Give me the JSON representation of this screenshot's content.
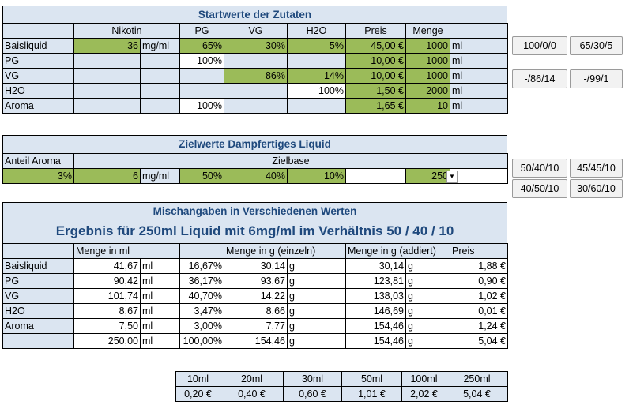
{
  "start": {
    "title": "Startwerte der Zutaten",
    "headers": [
      "Nikotin",
      "PG",
      "VG",
      "H2O",
      "Preis",
      "Menge"
    ],
    "rows": [
      {
        "label": "Baisliquid",
        "nik": "36",
        "nik_unit": "mg/ml",
        "pg": "65%",
        "vg": "30%",
        "h2o": "5%",
        "preis": "45,00 €",
        "menge": "1000",
        "unit": "ml"
      },
      {
        "label": "PG",
        "nik": "",
        "nik_unit": "",
        "pg": "100%",
        "vg": "",
        "h2o": "",
        "preis": "10,00 €",
        "menge": "1000",
        "unit": "ml"
      },
      {
        "label": "VG",
        "nik": "",
        "nik_unit": "",
        "pg": "",
        "vg": "86%",
        "h2o": "14%",
        "preis": "10,00 €",
        "menge": "1000",
        "unit": "ml"
      },
      {
        "label": "H2O",
        "nik": "",
        "nik_unit": "",
        "pg": "",
        "vg": "",
        "h2o": "100%",
        "preis": "1,50 €",
        "menge": "2000",
        "unit": "ml"
      },
      {
        "label": "Aroma",
        "nik": "",
        "nik_unit": "",
        "pg": "100%",
        "vg": "",
        "h2o": "",
        "preis": "1,65 €",
        "menge": "10",
        "unit": "ml"
      }
    ]
  },
  "preset_buttons": [
    "100/0/0",
    "65/30/5",
    "-/86/14",
    "-/99/1"
  ],
  "ziel": {
    "title": "Zielwerte Dampfertiges Liquid",
    "anteil_label": "Anteil Aroma",
    "zielbase_label": "Zielbase",
    "aroma": "3%",
    "nik": "6",
    "nik_unit": "mg/ml",
    "pg": "50%",
    "vg": "40%",
    "h2o": "10%",
    "menge": "250",
    "dropdown_icon": "▼"
  },
  "ratio_buttons": [
    "50/40/10",
    "45/45/10",
    "40/50/10",
    "30/60/10"
  ],
  "misch": {
    "title": "Mischangaben in Verschiedenen Werten",
    "result": "Ergebnis für 250ml Liquid mit 6mg/ml im Verhältnis 50 / 40 / 10",
    "headers": [
      "Menge in ml",
      "Menge in g (einzeln)",
      "Menge in g (addiert)",
      "Preis"
    ],
    "rows": [
      {
        "label": "Baisliquid",
        "ml": "41,67",
        "ml_u": "ml",
        "pct": "16,67%",
        "g": "30,14",
        "g_u": "g",
        "ga": "30,14",
        "ga_u": "g",
        "preis": "1,88 €"
      },
      {
        "label": "PG",
        "ml": "90,42",
        "ml_u": "ml",
        "pct": "36,17%",
        "g": "93,67",
        "g_u": "g",
        "ga": "123,81",
        "ga_u": "g",
        "preis": "0,90 €"
      },
      {
        "label": "VG",
        "ml": "101,74",
        "ml_u": "ml",
        "pct": "40,70%",
        "g": "14,22",
        "g_u": "g",
        "ga": "138,03",
        "ga_u": "g",
        "preis": "1,02 €"
      },
      {
        "label": "H2O",
        "ml": "8,67",
        "ml_u": "ml",
        "pct": "3,47%",
        "g": "8,66",
        "g_u": "g",
        "ga": "146,69",
        "ga_u": "g",
        "preis": "0,01 €"
      },
      {
        "label": "Aroma",
        "ml": "7,50",
        "ml_u": "ml",
        "pct": "3,00%",
        "g": "7,77",
        "g_u": "g",
        "ga": "154,46",
        "ga_u": "g",
        "preis": "1,24 €"
      },
      {
        "label": "",
        "ml": "250,00",
        "ml_u": "ml",
        "pct": "100,00%",
        "g": "154,46",
        "g_u": "g",
        "ga": "154,46",
        "ga_u": "g",
        "preis": "5,04 €"
      }
    ]
  },
  "price_table": {
    "sizes": [
      "10ml",
      "20ml",
      "30ml",
      "50ml",
      "100ml",
      "250ml"
    ],
    "prices": [
      "0,20 €",
      "0,40 €",
      "0,60 €",
      "1,01 €",
      "2,02 €",
      "5,04 €"
    ]
  }
}
